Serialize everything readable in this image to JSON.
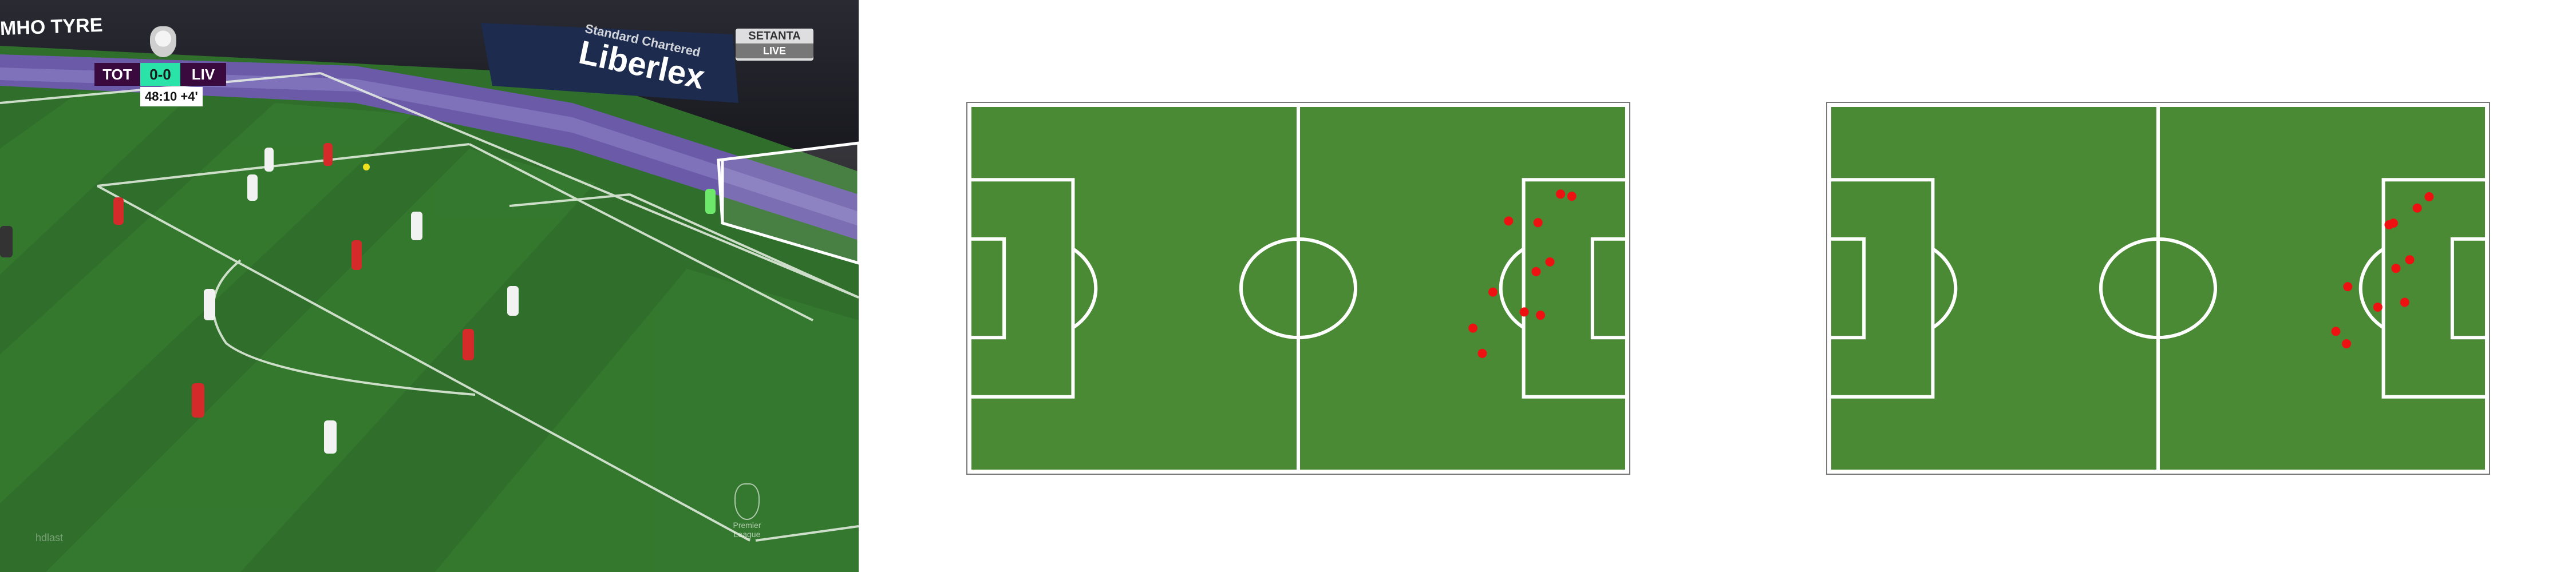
{
  "broadcast": {
    "scoreboard": {
      "home": "TOT",
      "score": "0-0",
      "away": "LIV",
      "time": "48:10",
      "added": "+4'"
    },
    "banners": {
      "sponsor": "Liberlex",
      "sponsor_sub": "Standard Chartered",
      "tyre": "MHO TYRE"
    },
    "broadcaster": {
      "name": "SETANTA",
      "tag": "LIVE"
    },
    "watermark": "hdlast",
    "logo_text": "Premier League",
    "colors": {
      "pitch": "#2f6f2b",
      "home_kit": "#f2f2f2",
      "away_kit": "#d42a2a",
      "scoreboard_bg": "#3a0a3e",
      "score_bg": "#29e3a8"
    }
  },
  "diagram_colors": {
    "pitch": "#4b8a35",
    "lines": "#ffffff",
    "player": "#ee1111"
  },
  "chart_data": [
    {
      "type": "scatter",
      "x_range": [
        0,
        105
      ],
      "y_range": [
        0,
        68
      ],
      "points": [
        {
          "x": 94.4,
          "y": 16.5
        },
        {
          "x": 96.2,
          "y": 16.9
        },
        {
          "x": 86.1,
          "y": 21.5
        },
        {
          "x": 90.8,
          "y": 21.8
        },
        {
          "x": 92.7,
          "y": 29.1
        },
        {
          "x": 90.5,
          "y": 30.9
        },
        {
          "x": 83.6,
          "y": 34.7
        },
        {
          "x": 88.6,
          "y": 38.4
        },
        {
          "x": 91.2,
          "y": 39.0
        },
        {
          "x": 80.4,
          "y": 41.4
        },
        {
          "x": 81.9,
          "y": 46.1
        }
      ]
    },
    {
      "type": "scatter",
      "x_range": [
        0,
        105
      ],
      "y_range": [
        0,
        68
      ],
      "points": [
        {
          "x": 95.8,
          "y": 17.0
        },
        {
          "x": 93.9,
          "y": 19.1
        },
        {
          "x": 90.1,
          "y": 21.9
        },
        {
          "x": 89.4,
          "y": 22.2
        },
        {
          "x": 92.7,
          "y": 28.7
        },
        {
          "x": 90.5,
          "y": 30.3
        },
        {
          "x": 82.8,
          "y": 33.7
        },
        {
          "x": 91.9,
          "y": 36.6
        },
        {
          "x": 87.6,
          "y": 37.5
        },
        {
          "x": 80.9,
          "y": 42.0
        },
        {
          "x": 82.6,
          "y": 44.3
        }
      ]
    }
  ]
}
